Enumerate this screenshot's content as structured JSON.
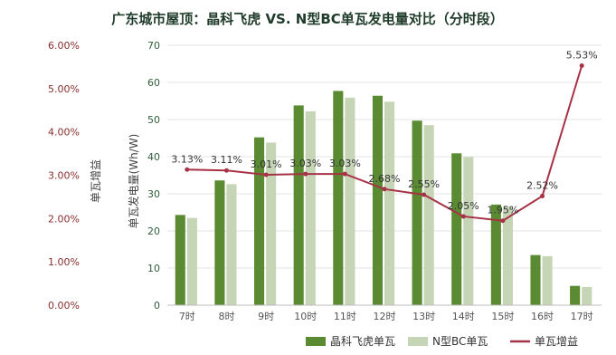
{
  "chart_data": {
    "type": "bar",
    "title": "广东城市屋顶：晶科飞虎 VS. N型BC单瓦发电量对比（分时段）",
    "categories": [
      "7时",
      "8时",
      "9时",
      "10时",
      "11时",
      "12时",
      "13时",
      "14时",
      "15时",
      "16时",
      "17时"
    ],
    "series": [
      {
        "name": "晶科飞虎单瓦",
        "type": "bar",
        "color": "#5a8a32",
        "values": [
          24.3,
          33.6,
          45.2,
          53.8,
          57.7,
          56.4,
          49.7,
          40.9,
          27.1,
          13.5,
          5.2
        ]
      },
      {
        "name": "N型BC单瓦",
        "type": "bar",
        "color": "#c5d5b5",
        "values": [
          23.5,
          32.6,
          43.8,
          52.2,
          55.9,
          54.8,
          48.5,
          39.9,
          26.6,
          13.2,
          4.9
        ]
      },
      {
        "name": "单瓦增益",
        "type": "line",
        "color": "#a83245",
        "values": [
          3.13,
          3.11,
          3.01,
          3.03,
          3.03,
          2.68,
          2.55,
          2.05,
          1.95,
          2.52,
          5.53
        ]
      }
    ],
    "y_left": {
      "label": "单瓦发电量(Wh/W)",
      "min": 0,
      "max": 70,
      "ticks": [
        0,
        10,
        20,
        30,
        40,
        50,
        60,
        70
      ]
    },
    "y_right": {
      "label": "单瓦增益",
      "min": 0,
      "max": 6,
      "ticks": [
        "0.00%",
        "1.00%",
        "2.00%",
        "3.00%",
        "4.00%",
        "5.00%",
        "6.00%"
      ]
    },
    "gain_labels": [
      "3.13%",
      "3.11%",
      "3.01%",
      "3.03%",
      "3.03%",
      "2.68%",
      "2.55%",
      "2.05%",
      "1.95%",
      "2.52%",
      "5.53%"
    ],
    "legend_position": "bottom-right",
    "grid": true
  }
}
